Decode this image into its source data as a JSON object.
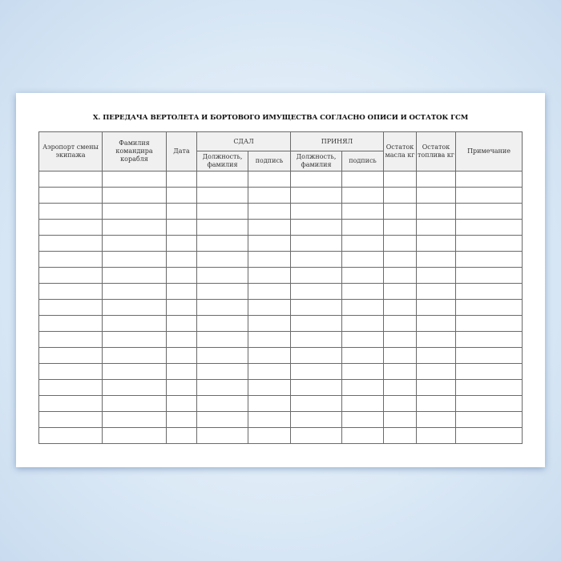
{
  "title": "X. ПЕРЕДАЧА ВЕРТОЛЕТА И БОРТОВОГО ИМУЩЕСТВА СОГЛАСНО ОПИСИ И ОСТАТОК ГСМ",
  "headers": {
    "airport": "Аэропорт смены экипажа",
    "commander": "Фамилия командира корабля",
    "date": "Дата",
    "handed": "СДАЛ",
    "accepted": "ПРИНЯЛ",
    "position": "Должность, фамилия",
    "signature": "подпись",
    "oil": "Остаток масла кг",
    "fuel": "Остаток топлива кг",
    "note": "Примечание"
  },
  "row_count": 17
}
